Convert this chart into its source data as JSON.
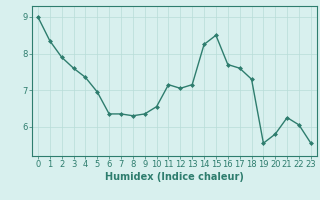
{
  "x": [
    0,
    1,
    2,
    3,
    4,
    5,
    6,
    7,
    8,
    9,
    10,
    11,
    12,
    13,
    14,
    15,
    16,
    17,
    18,
    19,
    20,
    21,
    22,
    23
  ],
  "y": [
    9.0,
    8.35,
    7.9,
    7.6,
    7.35,
    6.95,
    6.35,
    6.35,
    6.3,
    6.35,
    6.55,
    7.15,
    7.05,
    7.15,
    8.25,
    8.5,
    7.7,
    7.6,
    7.3,
    5.55,
    5.8,
    6.25,
    6.05,
    5.55
  ],
  "line_color": "#2e7d6e",
  "marker": "D",
  "markersize": 2.0,
  "linewidth": 1.0,
  "bg_color": "#d8f0ee",
  "grid_color": "#b8ddd8",
  "xlabel": "Humidex (Indice chaleur)",
  "xlabel_fontsize": 7,
  "yticks": [
    6,
    7,
    8,
    9
  ],
  "xticks": [
    0,
    1,
    2,
    3,
    4,
    5,
    6,
    7,
    8,
    9,
    10,
    11,
    12,
    13,
    14,
    15,
    16,
    17,
    18,
    19,
    20,
    21,
    22,
    23
  ],
  "xlim": [
    -0.5,
    23.5
  ],
  "ylim": [
    5.2,
    9.3
  ],
  "tick_fontsize": 6,
  "spine_color": "#2e7d6e"
}
